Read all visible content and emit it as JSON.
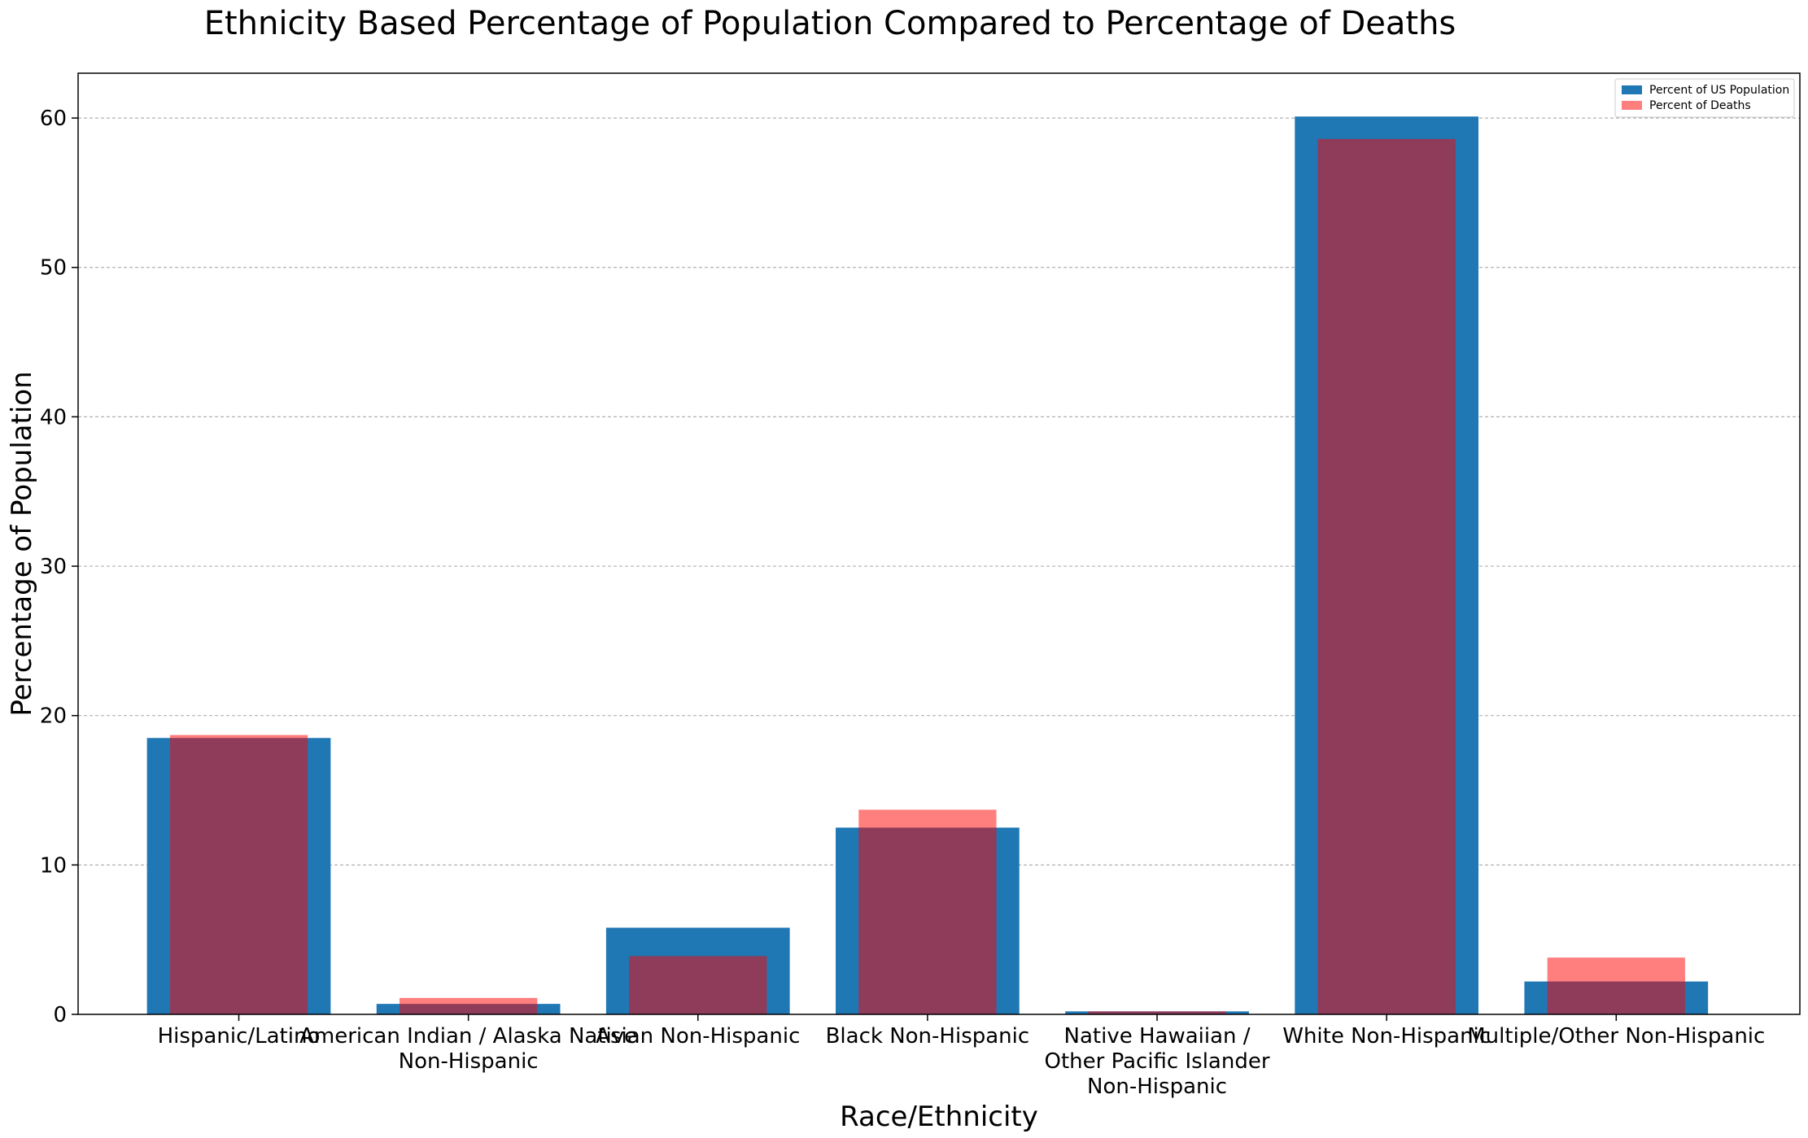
{
  "chart_data": {
    "type": "bar",
    "title": "Ethnicity Based Percentage of Population Compared to Percentage of Deaths",
    "xlabel": "Race/Ethnicity",
    "ylabel": "Percentage of Population",
    "ylim": [
      0,
      63
    ],
    "yticks": [
      0,
      10,
      20,
      30,
      40,
      50,
      60
    ],
    "grid": "y",
    "legend_position": "upper right",
    "categories": [
      [
        "Hispanic/Latino"
      ],
      [
        "American Indian / Alaska Native",
        "Non-Hispanic"
      ],
      [
        "Asian Non-Hispanic"
      ],
      [
        "Black Non-Hispanic"
      ],
      [
        "Native Hawaiian /",
        "Other Pacific Islander",
        "Non-Hispanic"
      ],
      [
        "White Non-Hispanic"
      ],
      [
        "Multiple/Other Non-Hispanic"
      ]
    ],
    "series": [
      {
        "name": "Percent of US Population",
        "color": "#1f77b4",
        "alpha": 1.0,
        "values": [
          18.5,
          0.7,
          5.8,
          12.5,
          0.2,
          60.1,
          2.2
        ]
      },
      {
        "name": "Percent of Deaths",
        "color": "#ff0000",
        "alpha": 0.5,
        "values": [
          18.7,
          1.1,
          3.9,
          13.7,
          0.2,
          58.6,
          3.8
        ]
      }
    ]
  }
}
